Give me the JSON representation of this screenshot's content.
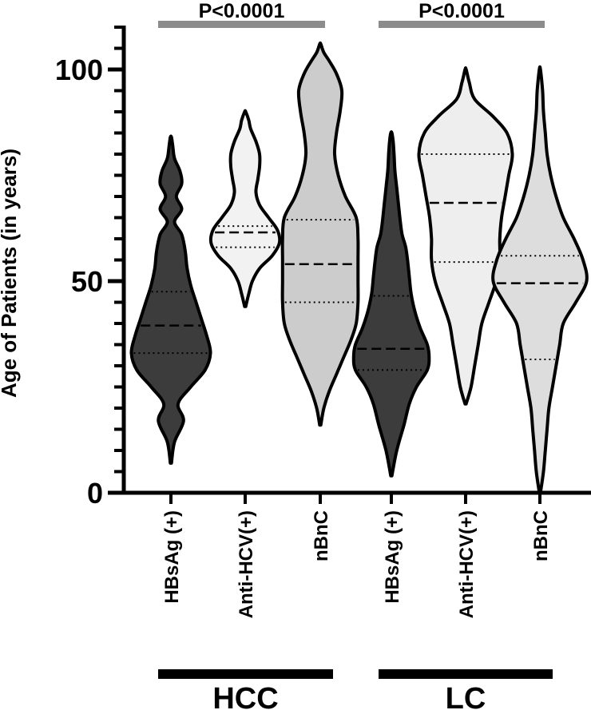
{
  "chart_data": {
    "type": "violin",
    "ylabel": "Age of Patients (in years)",
    "ylim": [
      0,
      110
    ],
    "yticks": [
      0,
      50,
      100
    ],
    "ytick_minor_step": 5,
    "grid": false,
    "categories": [
      "HBsAg (+)",
      "Anti-HCV(+)",
      "nBnC",
      "HBsAg (+)",
      "Anti-HCV(+)",
      "nBnC"
    ],
    "groups": [
      {
        "label": "HCC",
        "members": [
          0,
          1,
          2
        ]
      },
      {
        "label": "LC",
        "members": [
          3,
          4,
          5
        ]
      }
    ],
    "significance": [
      {
        "label": "P<0.0001",
        "group": 0
      },
      {
        "label": "P<0.0001",
        "group": 1
      }
    ],
    "series": [
      {
        "category": "HBsAg (+)",
        "group": "HCC",
        "fill": "#3c3c3c",
        "min": 7,
        "max": 84,
        "q1": 33,
        "median": 39.5,
        "q3": 47.5,
        "profile": [
          [
            7,
            0.3
          ],
          [
            12,
            2
          ],
          [
            17,
            7
          ],
          [
            21,
            4
          ],
          [
            25,
            11
          ],
          [
            29,
            19
          ],
          [
            33,
            22
          ],
          [
            37,
            20
          ],
          [
            41,
            17
          ],
          [
            45,
            14
          ],
          [
            49,
            11
          ],
          [
            53,
            9
          ],
          [
            57,
            8
          ],
          [
            61,
            6
          ],
          [
            64,
            2
          ],
          [
            67,
            6
          ],
          [
            70,
            3
          ],
          [
            73,
            6
          ],
          [
            76,
            5
          ],
          [
            79,
            2
          ],
          [
            82,
            1
          ],
          [
            84,
            0.3
          ]
        ]
      },
      {
        "category": "Anti-HCV(+)",
        "group": "HCC",
        "fill": "#f2f2f2",
        "min": 44,
        "max": 90,
        "q1": 58,
        "median": 61.5,
        "q3": 63,
        "profile": [
          [
            44,
            0.3
          ],
          [
            47,
            2
          ],
          [
            50,
            4
          ],
          [
            53,
            8
          ],
          [
            56,
            15
          ],
          [
            59,
            19
          ],
          [
            62,
            18
          ],
          [
            65,
            13
          ],
          [
            68,
            8
          ],
          [
            71,
            6
          ],
          [
            74,
            7
          ],
          [
            77,
            8
          ],
          [
            80,
            8
          ],
          [
            83,
            6
          ],
          [
            86,
            3
          ],
          [
            88,
            2
          ],
          [
            90,
            0.3
          ]
        ]
      },
      {
        "category": "nBnC",
        "group": "HCC",
        "fill": "#cccccc",
        "min": 16,
        "max": 106,
        "q1": 45,
        "median": 54,
        "q3": 64.5,
        "profile": [
          [
            16,
            0.3
          ],
          [
            20,
            2
          ],
          [
            24,
            5
          ],
          [
            28,
            9
          ],
          [
            32,
            13
          ],
          [
            36,
            17
          ],
          [
            40,
            20
          ],
          [
            45,
            21
          ],
          [
            50,
            21
          ],
          [
            55,
            21
          ],
          [
            60,
            21
          ],
          [
            65,
            20
          ],
          [
            70,
            14
          ],
          [
            75,
            10
          ],
          [
            80,
            8
          ],
          [
            85,
            9
          ],
          [
            90,
            11
          ],
          [
            95,
            12
          ],
          [
            99,
            9
          ],
          [
            102,
            5
          ],
          [
            104,
            2
          ],
          [
            106,
            0.3
          ]
        ]
      },
      {
        "category": "HBsAg (+)",
        "group": "LC",
        "fill": "#3c3c3c",
        "min": 4,
        "max": 85,
        "q1": 29,
        "median": 34,
        "q3": 46.5,
        "profile": [
          [
            4,
            0.3
          ],
          [
            10,
            3
          ],
          [
            16,
            7
          ],
          [
            21,
            10
          ],
          [
            25,
            14
          ],
          [
            29,
            20
          ],
          [
            32,
            21
          ],
          [
            35,
            20
          ],
          [
            39,
            16
          ],
          [
            43,
            13
          ],
          [
            47,
            11
          ],
          [
            51,
            10
          ],
          [
            55,
            9
          ],
          [
            58,
            8
          ],
          [
            61,
            6
          ],
          [
            64,
            5
          ],
          [
            68,
            4
          ],
          [
            72,
            3
          ],
          [
            76,
            2
          ],
          [
            80,
            1.5
          ],
          [
            83,
            1
          ],
          [
            85,
            0.3
          ]
        ]
      },
      {
        "category": "Anti-HCV(+)",
        "group": "LC",
        "fill": "#eeeeee",
        "min": 21,
        "max": 100,
        "q1": 54.5,
        "median": 68.5,
        "q3": 80,
        "profile": [
          [
            21,
            0.3
          ],
          [
            25,
            3
          ],
          [
            30,
            5
          ],
          [
            35,
            7
          ],
          [
            40,
            9
          ],
          [
            45,
            13
          ],
          [
            50,
            17
          ],
          [
            55,
            19
          ],
          [
            60,
            19
          ],
          [
            65,
            20
          ],
          [
            70,
            22
          ],
          [
            75,
            24
          ],
          [
            80,
            26
          ],
          [
            85,
            23
          ],
          [
            89,
            15
          ],
          [
            93,
            5
          ],
          [
            97,
            2
          ],
          [
            100,
            0.3
          ]
        ]
      },
      {
        "category": "nBnC",
        "group": "LC",
        "fill": "#dddddd",
        "min": 0,
        "max": 100,
        "q1": 31.5,
        "median": 49.5,
        "q3": 56,
        "profile": [
          [
            0,
            0.3
          ],
          [
            5,
            2
          ],
          [
            10,
            3
          ],
          [
            15,
            4
          ],
          [
            20,
            5
          ],
          [
            25,
            7
          ],
          [
            30,
            9
          ],
          [
            35,
            11
          ],
          [
            40,
            13
          ],
          [
            45,
            20
          ],
          [
            50,
            26
          ],
          [
            55,
            24
          ],
          [
            60,
            19
          ],
          [
            65,
            13
          ],
          [
            70,
            9
          ],
          [
            75,
            6
          ],
          [
            80,
            4
          ],
          [
            85,
            3
          ],
          [
            90,
            2
          ],
          [
            95,
            1.5
          ],
          [
            100,
            0.3
          ]
        ]
      }
    ]
  }
}
